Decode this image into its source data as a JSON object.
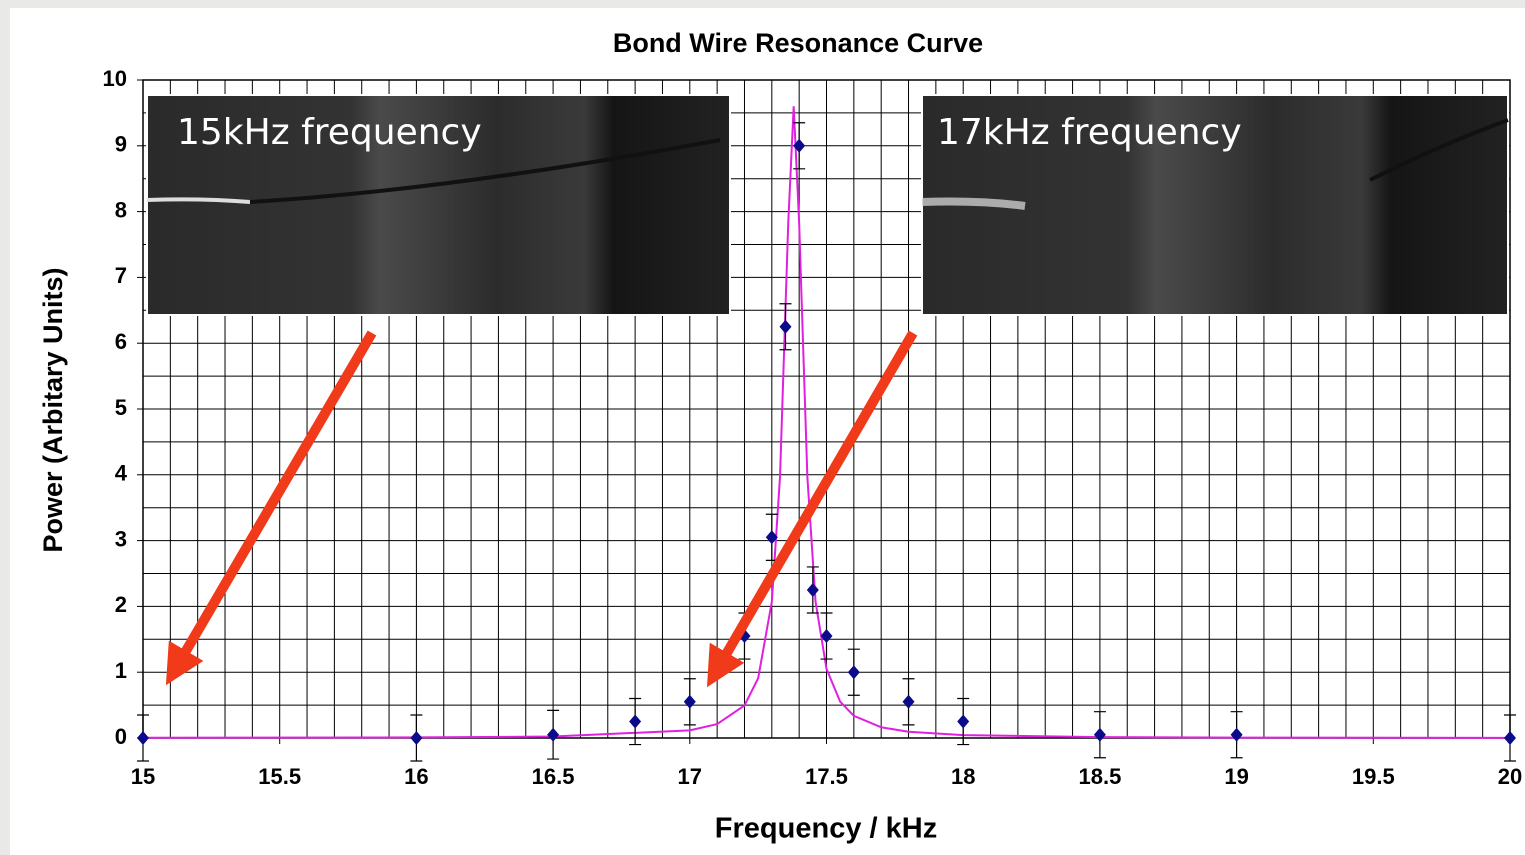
{
  "chart_data": {
    "type": "scatter",
    "title": "Bond Wire Resonance Curve",
    "xlabel": "Frequency / kHz",
    "ylabel": "Power (Arbitary Units)",
    "xlim": [
      15,
      20
    ],
    "ylim": [
      0,
      10
    ],
    "xticks": [
      15,
      15.5,
      16,
      16.5,
      17,
      17.5,
      18,
      18.5,
      19,
      19.5,
      20
    ],
    "yticks": [
      0,
      1,
      2,
      3,
      4,
      5,
      6,
      7,
      8,
      9,
      10
    ],
    "grid": true,
    "grid_step": {
      "x": 0.1,
      "y": 0.5
    },
    "points": {
      "color": "#0a0a8a",
      "x": [
        15,
        16,
        16.5,
        16.8,
        17,
        17.2,
        17.3,
        17.35,
        17.4,
        17.45,
        17.5,
        17.6,
        17.8,
        18,
        18.5,
        19,
        20
      ],
      "values": [
        0,
        0,
        0.05,
        0.25,
        0.55,
        1.55,
        3.05,
        6.25,
        9.0,
        2.25,
        1.55,
        1.0,
        0.55,
        0.25,
        0.05,
        0.05,
        0
      ],
      "errors": [
        0.35,
        0.35,
        0.37,
        0.35,
        0.35,
        0.35,
        0.35,
        0.35,
        0.35,
        0.35,
        0.35,
        0.35,
        0.35,
        0.35,
        0.35,
        0.35,
        0.35
      ]
    },
    "fit": {
      "color": "#e020e0",
      "x": [
        15,
        16,
        16.5,
        17,
        17.1,
        17.2,
        17.25,
        17.3,
        17.33,
        17.36,
        17.38,
        17.4,
        17.43,
        17.46,
        17.5,
        17.55,
        17.6,
        17.7,
        17.8,
        18,
        18.5,
        19,
        20
      ],
      "values": [
        0.003,
        0.009,
        0.022,
        0.116,
        0.211,
        0.495,
        0.907,
        2.07,
        3.97,
        7.82,
        9.6,
        7.82,
        3.97,
        2.07,
        1.05,
        0.552,
        0.338,
        0.163,
        0.095,
        0.044,
        0.013,
        0.006,
        0.002
      ]
    },
    "insets": [
      {
        "caption": "15kHz frequency"
      },
      {
        "caption": "17kHz frequency"
      }
    ]
  }
}
